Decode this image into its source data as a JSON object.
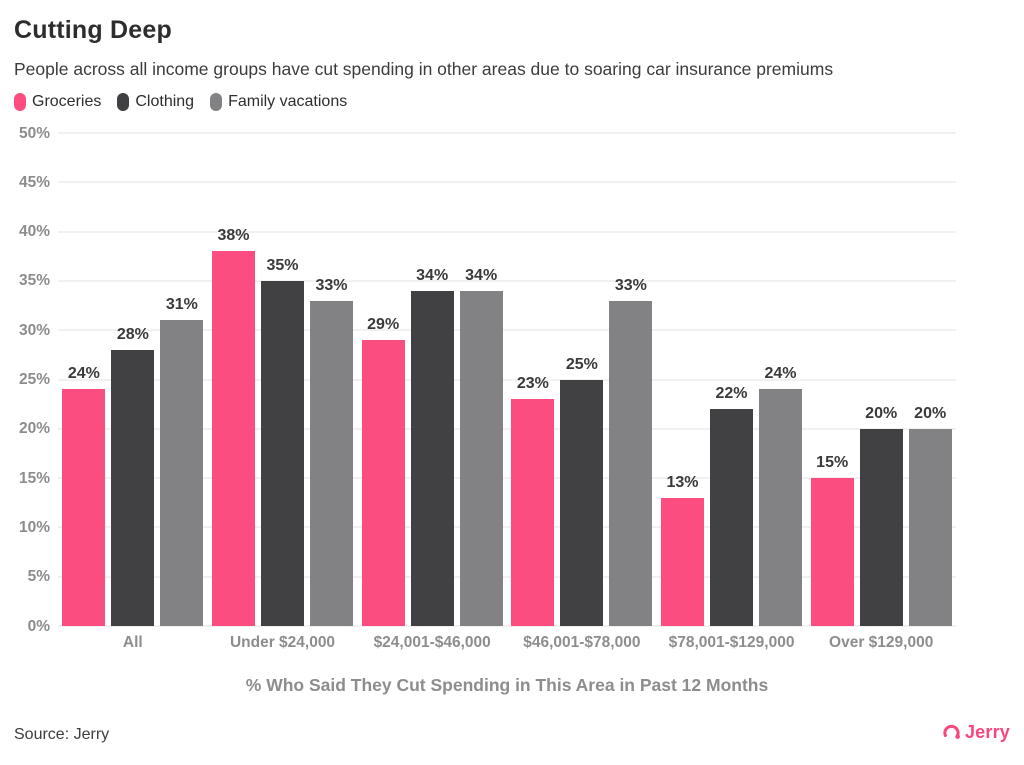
{
  "header": {
    "title": "Cutting Deep",
    "subtitle": "People across all income groups have cut spending in other areas due to soaring car insurance premiums"
  },
  "chart_data": {
    "type": "bar",
    "title": "Cutting Deep",
    "subtitle": "People across all income groups have cut spending in other areas due to soaring car insurance premiums",
    "categories": [
      "All",
      "Under $24,000",
      "$24,001-$46,000",
      "$46,001-$78,000",
      "$78,001-$129,000",
      "Over $129,000"
    ],
    "series": [
      {
        "name": "Groceries",
        "color": "#fc4d80",
        "values": [
          24,
          38,
          29,
          23,
          13,
          15
        ]
      },
      {
        "name": "Clothing",
        "color": "#414143",
        "values": [
          28,
          35,
          34,
          25,
          22,
          20
        ]
      },
      {
        "name": "Family vacations",
        "color": "#828284",
        "values": [
          31,
          33,
          34,
          33,
          24,
          20
        ]
      }
    ],
    "value_suffix": "%",
    "xlabel": "% Who Said They Cut Spending in This Area in Past 12 Months",
    "ylabel": "",
    "ylim": [
      0,
      50
    ],
    "ytick_step": 5,
    "grid": true,
    "legend_position": "top-left",
    "data_labels": true
  },
  "colors": {
    "grid": "#f2f0f0",
    "axis_text": "#8c8c8c",
    "value_label": "#3a3a3a",
    "brand_pink": "#f7477d"
  },
  "footer": {
    "source": "Source: Jerry",
    "brand": "Jerry"
  }
}
